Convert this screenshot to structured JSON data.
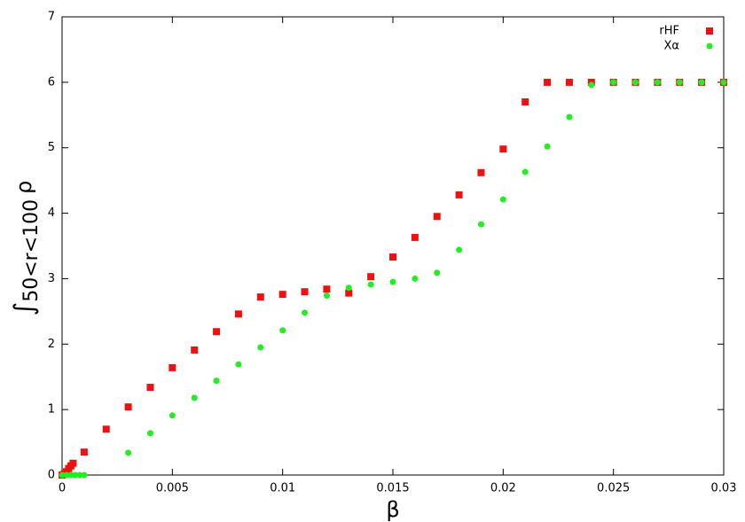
{
  "chart_data": {
    "type": "scatter",
    "xlabel": "β",
    "ylabel": {
      "integral": "∫",
      "subscript": "50<r<100",
      "symbol": "ρ"
    },
    "xlim": [
      0,
      0.03
    ],
    "ylim": [
      0,
      7
    ],
    "xticks": [
      0,
      0.005,
      0.01,
      0.015,
      0.02,
      0.025,
      0.03
    ],
    "yticks": [
      0,
      1,
      2,
      3,
      4,
      5,
      6,
      7
    ],
    "legend": "top-right",
    "series": [
      {
        "name": "rHF",
        "color": "#ee1111",
        "marker": "square",
        "x": [
          0,
          0.0001,
          0.0002,
          0.0003,
          0.0004,
          0.0005,
          0.001,
          0.002,
          0.003,
          0.004,
          0.005,
          0.006,
          0.007,
          0.008,
          0.009,
          0.01,
          0.011,
          0.012,
          0.013,
          0.014,
          0.015,
          0.016,
          0.017,
          0.018,
          0.019,
          0.02,
          0.021,
          0.022,
          0.023,
          0.024,
          0.025,
          0.026,
          0.027,
          0.028,
          0.029,
          0.03
        ],
        "values": [
          0,
          0.02,
          0.05,
          0.1,
          0.14,
          0.18,
          0.35,
          0.7,
          1.04,
          1.34,
          1.64,
          1.91,
          2.19,
          2.46,
          2.72,
          2.76,
          2.8,
          2.84,
          2.78,
          3.03,
          3.33,
          3.63,
          3.95,
          4.28,
          4.62,
          4.98,
          5.7,
          6,
          6,
          6,
          6,
          6,
          6,
          6,
          6,
          6
        ]
      },
      {
        "name": "Xα",
        "color": "#22ee22",
        "marker": "circle",
        "x": [
          0,
          0.0002,
          0.0004,
          0.0006,
          0.0008,
          0.001,
          0.003,
          0.004,
          0.005,
          0.006,
          0.007,
          0.008,
          0.009,
          0.01,
          0.011,
          0.012,
          0.013,
          0.014,
          0.015,
          0.016,
          0.017,
          0.018,
          0.019,
          0.02,
          0.021,
          0.022,
          0.023,
          0.024,
          0.025,
          0.026,
          0.027,
          0.028,
          0.029,
          0.03
        ],
        "values": [
          0,
          0,
          0,
          0,
          0,
          0,
          0.34,
          0.64,
          0.91,
          1.18,
          1.44,
          1.69,
          1.95,
          2.21,
          2.48,
          2.74,
          2.86,
          2.91,
          2.95,
          3.0,
          3.09,
          3.44,
          3.83,
          4.21,
          4.63,
          5.02,
          5.47,
          5.96,
          6,
          6,
          6,
          6,
          6,
          6
        ]
      }
    ]
  }
}
